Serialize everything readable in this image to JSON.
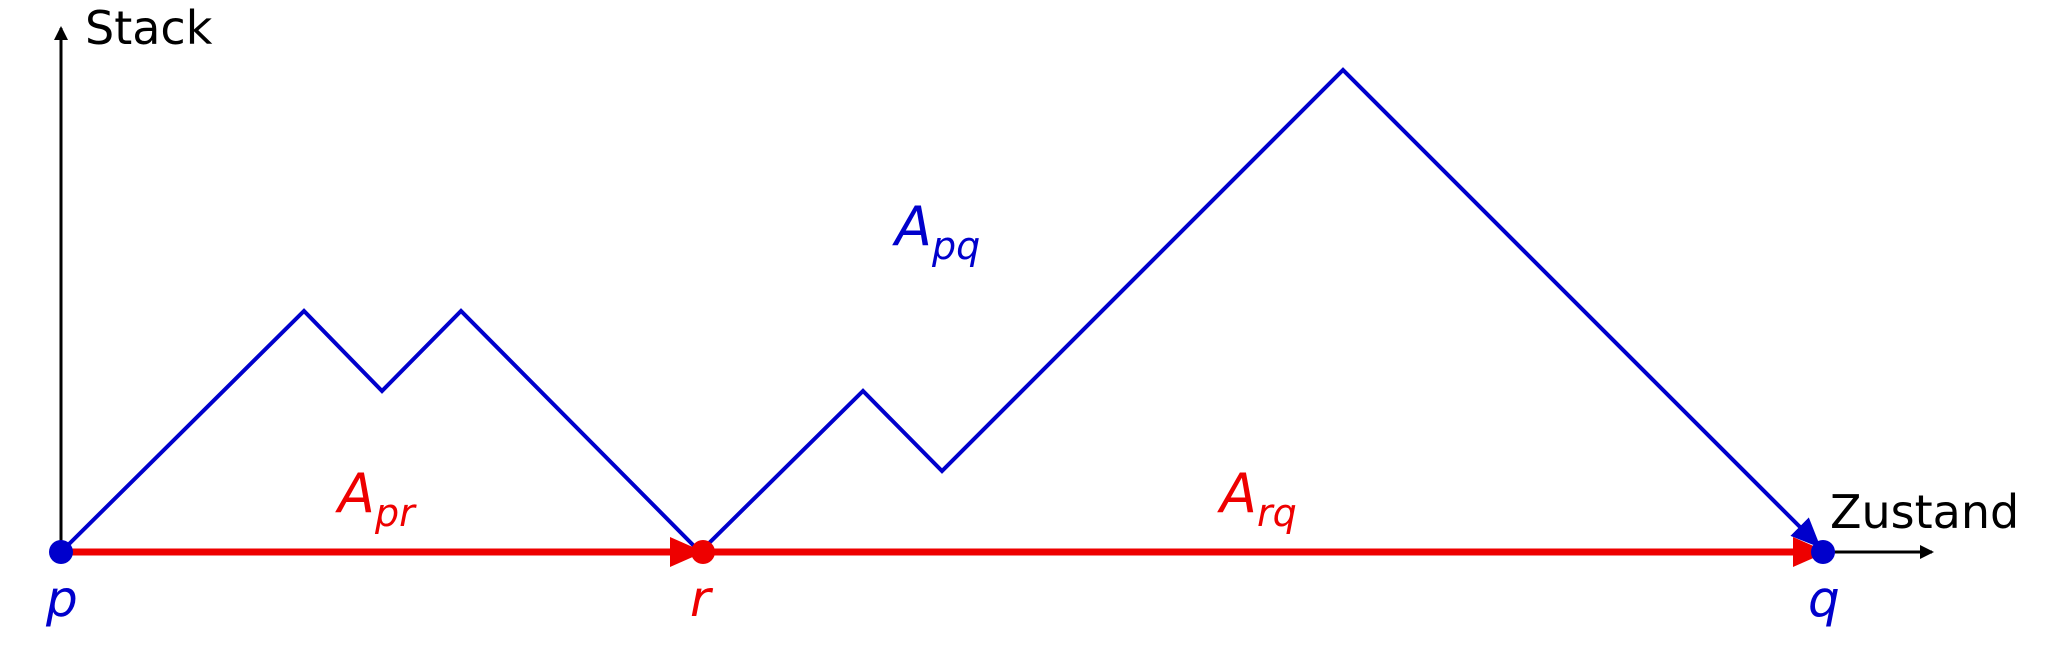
{
  "axes": {
    "y_label": "Stack",
    "x_label": "Zustand"
  },
  "labels": {
    "pq_main": "A",
    "pq_sub": "pq",
    "pr_main": "A",
    "pr_sub": "pr",
    "rq_main": "A",
    "rq_sub": "rq"
  },
  "points": {
    "p": "p",
    "r": "r",
    "q": "q"
  },
  "colors": {
    "blue": "#0000cc",
    "red": "#ee0000",
    "black": "#000000"
  }
}
